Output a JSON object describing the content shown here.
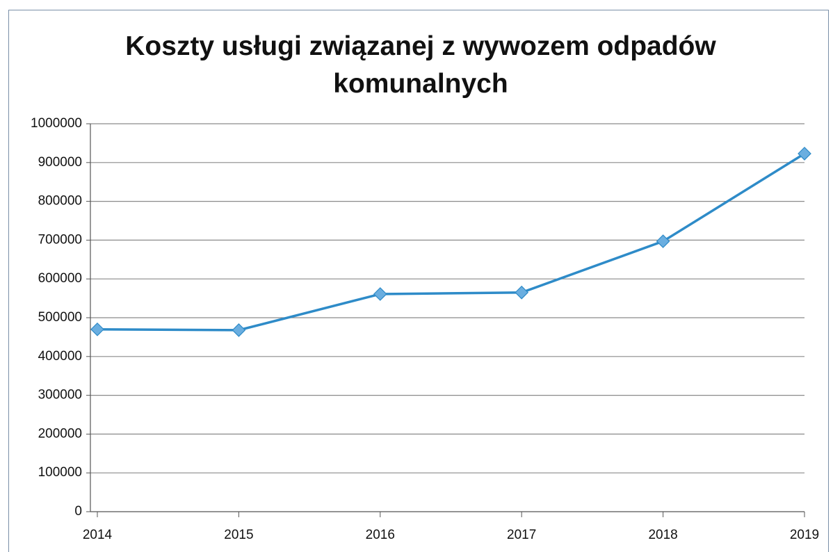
{
  "chart_data": {
    "type": "line",
    "title": "Koszty usługi związanej z wywozem odpadów komunalnych",
    "categories": [
      "2014",
      "2015",
      "2016",
      "2017",
      "2018",
      "2019"
    ],
    "series": [
      {
        "name": "Koszty",
        "color": "#2e8bc8",
        "marker_color": "#6aaee0",
        "values": [
          470000,
          468000,
          561000,
          565000,
          697000,
          923000
        ]
      }
    ],
    "ylim": [
      0,
      1000000
    ],
    "yticks": [
      0,
      100000,
      200000,
      300000,
      400000,
      500000,
      600000,
      700000,
      800000,
      900000,
      1000000
    ],
    "grid": true
  }
}
